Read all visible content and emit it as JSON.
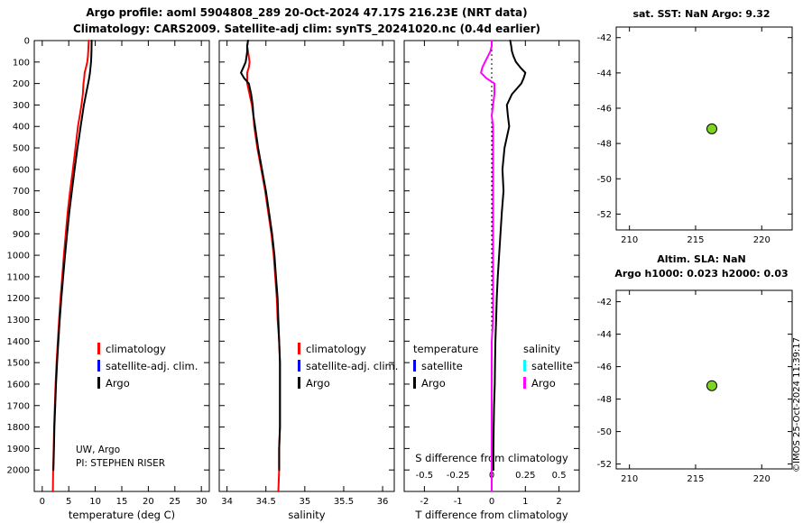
{
  "titles": {
    "line1": "Argo profile: aoml 5904808_289 20-Oct-2024 47.17S 216.23E (NRT data)",
    "line2": "Climatology: CARS2009. Satellite-adj clim: synTS_20241020.nc (0.4d earlier)"
  },
  "annotations": {
    "institution": "UW, Argo",
    "pi": "PI: STEPHEN RISER",
    "copyright": "©IMOS 25-Oct-2024 11:39:17"
  },
  "colors": {
    "climatology": "#ff0000",
    "satellite_adj_clim": "#0000ff",
    "argo": "#000000",
    "satellite_salinity": "#00ffff",
    "argo_salinity": "#ff00ff",
    "marker": "#7fd420",
    "axis": "#000000",
    "background": "#ffffff"
  },
  "legends": {
    "profile": [
      {
        "label": "climatology",
        "color": "#ff0000"
      },
      {
        "label": "satellite-adj. clim.",
        "color": "#0000ff"
      },
      {
        "label": "Argo",
        "color": "#000000"
      }
    ],
    "difference": [
      {
        "header": "temperature",
        "items": [
          {
            "label": "satellite",
            "color": "#0000ff"
          },
          {
            "label": "Argo",
            "color": "#000000"
          }
        ]
      },
      {
        "header": "salinity",
        "items": [
          {
            "label": "satellite",
            "color": "#00ffff"
          },
          {
            "label": "Argo",
            "color": "#ff00ff"
          }
        ]
      }
    ]
  },
  "chart_data": [
    {
      "type": "line",
      "title": "",
      "xlabel": "temperature (deg C)",
      "xlim": [
        -1.5,
        31.5
      ],
      "xticks": [
        0,
        5,
        10,
        15,
        20,
        25,
        30
      ],
      "ylim_depth": [
        0,
        2100
      ],
      "yticks": [
        0,
        100,
        200,
        300,
        400,
        500,
        600,
        700,
        800,
        900,
        1000,
        1100,
        1200,
        1300,
        1400,
        1500,
        1600,
        1700,
        1800,
        1900,
        2000
      ],
      "legend": [
        "climatology",
        "satellite-adj. clim.",
        "Argo"
      ],
      "depths": [
        0,
        25,
        50,
        75,
        100,
        125,
        150,
        175,
        200,
        250,
        300,
        350,
        400,
        450,
        500,
        600,
        700,
        800,
        900,
        1000,
        1100,
        1200,
        1300,
        1400,
        1500,
        1600,
        1700,
        1800,
        1900,
        2000,
        2100
      ],
      "series": [
        {
          "name": "climatology",
          "color": "#ff0000",
          "values": [
            8.77,
            8.72,
            8.68,
            8.6,
            8.48,
            8.25,
            8.0,
            7.9,
            7.77,
            7.65,
            7.4,
            7.07,
            6.73,
            6.5,
            6.27,
            5.78,
            5.25,
            4.8,
            4.44,
            4.08,
            3.77,
            3.45,
            3.17,
            2.94,
            2.7,
            2.51,
            2.38,
            2.24,
            2.15,
            2.05,
            2.0
          ]
        },
        {
          "name": "Argo",
          "color": "#000000",
          "values": [
            9.32,
            9.3,
            9.28,
            9.25,
            9.2,
            9.1,
            9.0,
            8.85,
            8.65,
            8.25,
            7.85,
            7.55,
            7.25,
            6.95,
            6.65,
            6.1,
            5.6,
            5.1,
            4.7,
            4.3,
            3.95,
            3.6,
            3.3,
            3.05,
            2.8,
            2.6,
            2.45,
            2.3,
            2.2,
            2.1
          ]
        }
      ]
    },
    {
      "type": "line",
      "title": "",
      "xlabel": "salinity",
      "xlim": [
        33.9,
        36.15
      ],
      "xticks": [
        34,
        34.5,
        35,
        35.5,
        36
      ],
      "ylim_depth": [
        0,
        2100
      ],
      "yticks": [
        0,
        100,
        200,
        300,
        400,
        500,
        600,
        700,
        800,
        900,
        1000,
        1100,
        1200,
        1300,
        1400,
        1500,
        1600,
        1700,
        1800,
        1900,
        2000
      ],
      "legend": [
        "climatology",
        "satellite-adj. clim.",
        "Argo"
      ],
      "depths": [
        0,
        25,
        50,
        75,
        100,
        125,
        150,
        175,
        200,
        250,
        300,
        350,
        400,
        450,
        500,
        600,
        700,
        800,
        900,
        1000,
        1100,
        1200,
        1300,
        1400,
        1500,
        1600,
        1700,
        1800,
        1900,
        2000,
        2100
      ],
      "series": [
        {
          "name": "climatology",
          "color": "#ff0000",
          "values": [
            34.27,
            34.26,
            34.27,
            34.28,
            34.29,
            34.28,
            34.26,
            34.26,
            34.26,
            34.29,
            34.32,
            34.34,
            34.35,
            34.37,
            34.39,
            34.44,
            34.49,
            34.53,
            34.57,
            34.6,
            34.62,
            34.64,
            34.65,
            34.67,
            34.68,
            34.68,
            34.68,
            34.68,
            34.67,
            34.67,
            34.66
          ]
        },
        {
          "name": "Argo",
          "color": "#000000",
          "values": [
            34.27,
            34.26,
            34.26,
            34.25,
            34.24,
            34.21,
            34.18,
            34.22,
            34.28,
            34.31,
            34.33,
            34.34,
            34.36,
            34.38,
            34.4,
            34.45,
            34.5,
            34.54,
            34.58,
            34.61,
            34.63,
            34.65,
            34.66,
            34.67,
            34.68,
            34.68,
            34.68,
            34.68,
            34.67,
            34.67
          ]
        }
      ]
    },
    {
      "type": "line",
      "title": "",
      "xlabel": "T difference from climatology",
      "xlabel_secondary": "S difference from climatology",
      "xlim": [
        -2.6,
        2.6
      ],
      "xticks": [
        -2,
        -1,
        0,
        1,
        2
      ],
      "xticks_secondary": [
        -0.5,
        -0.25,
        0,
        0.25,
        0.5
      ],
      "secondary_scale": 4,
      "zero_line": true,
      "ylim_depth": [
        0,
        2100
      ],
      "yticks": [
        0,
        100,
        200,
        300,
        400,
        500,
        600,
        700,
        800,
        900,
        1000,
        1100,
        1200,
        1300,
        1400,
        1500,
        1600,
        1700,
        1800,
        1900,
        2000
      ],
      "depths": [
        0,
        25,
        50,
        75,
        100,
        125,
        150,
        175,
        200,
        250,
        300,
        350,
        400,
        450,
        500,
        600,
        700,
        800,
        900,
        1000,
        1100,
        1200,
        1300,
        1400,
        1500,
        1600,
        1700,
        1800,
        1900,
        2000,
        2100
      ],
      "series": [
        {
          "name": "S diff Argo",
          "color": "#ff00ff",
          "scale": 4,
          "values": [
            0,
            0,
            -0.01,
            -0.03,
            -0.05,
            -0.07,
            -0.08,
            -0.04,
            0.02,
            0.02,
            0.01,
            0,
            0.01,
            0.01,
            0.01,
            0.01,
            0.01,
            0.01,
            0.01,
            0.01,
            0.01,
            0.01,
            0.01,
            0,
            0,
            0,
            0,
            0,
            0,
            0,
            0
          ]
        },
        {
          "name": "T diff Argo",
          "color": "#000000",
          "values": [
            0.55,
            0.58,
            0.6,
            0.65,
            0.72,
            0.85,
            1.0,
            0.95,
            0.88,
            0.6,
            0.45,
            0.48,
            0.52,
            0.45,
            0.38,
            0.32,
            0.35,
            0.3,
            0.26,
            0.22,
            0.18,
            0.15,
            0.13,
            0.11,
            0.1,
            0.09,
            0.07,
            0.06,
            0.05,
            0.05
          ]
        }
      ]
    },
    {
      "type": "scatter",
      "title": "sat. SST: NaN Argo: 9.32",
      "xlim": [
        209,
        222.3
      ],
      "xticks": [
        210,
        215,
        220
      ],
      "ylim": [
        -41.4,
        -52.9
      ],
      "yticks": [
        -42,
        -44,
        -46,
        -48,
        -50,
        -52
      ],
      "points": [
        {
          "x": 216.23,
          "y": -47.17,
          "color": "#7fd420"
        }
      ]
    },
    {
      "type": "scatter",
      "title_line1": "Altim. SLA: NaN",
      "title_line2": "Argo h1000: 0.023 h2000: 0.03",
      "xlim": [
        209,
        222.3
      ],
      "xticks": [
        210,
        215,
        220
      ],
      "ylim": [
        -41.3,
        -52.3
      ],
      "yticks": [
        -42,
        -44,
        -46,
        -48,
        -50,
        -52
      ],
      "points": [
        {
          "x": 216.23,
          "y": -47.17,
          "color": "#7fd420"
        }
      ]
    }
  ]
}
